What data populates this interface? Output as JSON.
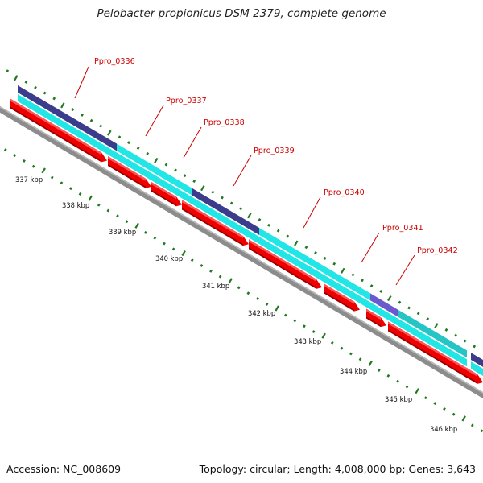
{
  "title": "Pelobacter propionicus DSM 2379, complete genome",
  "footer": {
    "accession": "Accession: NC_008609",
    "summary": "Topology: circular; Length: 4,008,000 bp; Genes: 3,643"
  },
  "kbp_labels": [
    "337 kbp",
    "338 kbp",
    "339 kbp",
    "340 kbp",
    "341 kbp",
    "342 kbp",
    "343 kbp",
    "344 kbp",
    "345 kbp",
    "346 kbp"
  ],
  "genes": [
    {
      "label": "Ppro_0336"
    },
    {
      "label": "Ppro_0337"
    },
    {
      "label": "Ppro_0338"
    },
    {
      "label": "Ppro_0339"
    },
    {
      "label": "Ppro_0340"
    },
    {
      "label": "Ppro_0341"
    },
    {
      "label": "Ppro_0342"
    }
  ],
  "colors": {
    "cds": "#ee0000",
    "cds_highlight": "#ff5555",
    "cds_shadow": "#990000",
    "cyan": "#22e5e5",
    "teal": "#25c5c5",
    "navy": "#3c3c8c",
    "lavender": "#6a5acd",
    "backbone": "#8c8c8c",
    "tick": "#1f7a1f",
    "label_line": "#cc0000",
    "label_text": "#cc0000"
  }
}
